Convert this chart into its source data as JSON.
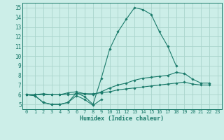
{
  "background_color": "#cceee8",
  "grid_color": "#aad4cc",
  "line_color": "#1a7a6a",
  "xlabel": "Humidex (Indice chaleur)",
  "xlim": [
    -0.5,
    23.5
  ],
  "ylim": [
    4.5,
    15.5
  ],
  "xticks": [
    0,
    1,
    2,
    3,
    4,
    5,
    6,
    7,
    8,
    9,
    10,
    11,
    12,
    13,
    14,
    15,
    16,
    17,
    18,
    19,
    20,
    21,
    22,
    23
  ],
  "yticks": [
    5,
    6,
    7,
    8,
    9,
    10,
    11,
    12,
    13,
    14,
    15
  ],
  "series": [
    [
      6.0,
      5.9,
      5.2,
      5.0,
      5.0,
      5.2,
      6.2,
      5.8,
      5.0,
      7.7,
      10.7,
      12.5,
      13.8,
      15.0,
      14.8,
      14.3,
      12.5,
      11.0,
      9.0,
      null,
      null,
      null,
      null,
      null
    ],
    [
      6.0,
      5.9,
      5.2,
      5.0,
      5.0,
      5.2,
      5.9,
      5.5,
      4.9,
      5.5,
      null,
      null,
      null,
      null,
      null,
      null,
      null,
      null,
      null,
      null,
      null,
      null,
      null,
      null
    ],
    [
      6.0,
      6.0,
      6.1,
      6.0,
      6.0,
      6.2,
      6.3,
      6.1,
      6.0,
      6.3,
      6.7,
      7.0,
      7.2,
      7.5,
      7.7,
      7.8,
      7.9,
      8.0,
      8.3,
      8.2,
      7.6,
      7.2,
      7.2,
      null
    ],
    [
      6.0,
      6.0,
      6.0,
      6.0,
      6.0,
      6.0,
      6.1,
      6.1,
      6.1,
      6.2,
      6.3,
      6.5,
      6.6,
      6.7,
      6.8,
      6.9,
      7.0,
      7.1,
      7.2,
      7.3,
      7.1,
      7.0,
      7.0,
      null
    ]
  ]
}
